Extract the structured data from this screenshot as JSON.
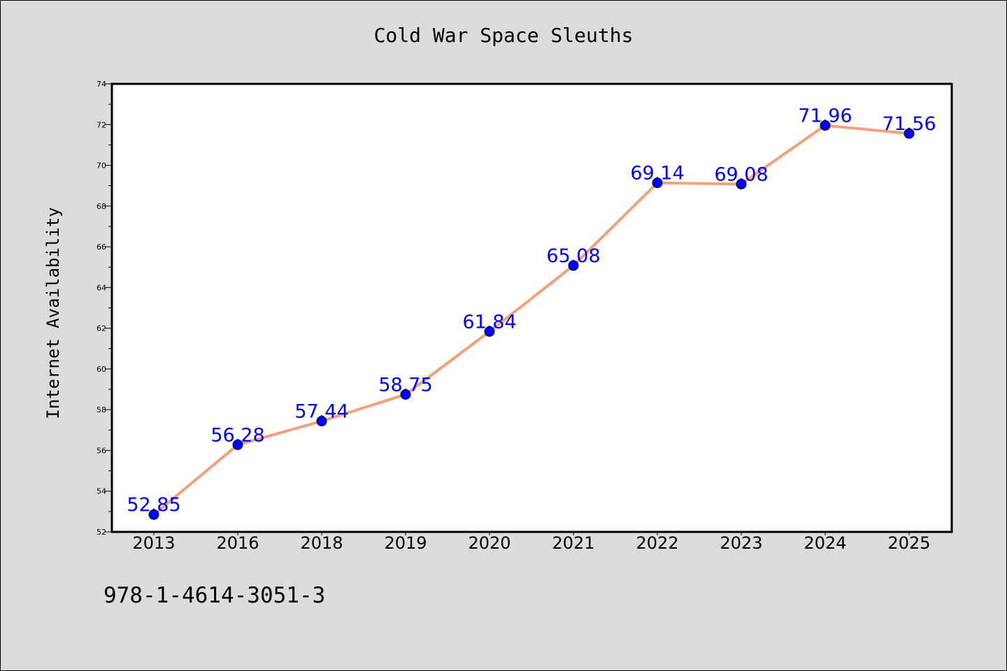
{
  "chart_data": {
    "type": "line",
    "title": "Cold War Space Sleuths",
    "xlabel": "",
    "ylabel": "Internet Availability",
    "categories": [
      "2013",
      "2016",
      "2018",
      "2019",
      "2020",
      "2021",
      "2022",
      "2023",
      "2024",
      "2025"
    ],
    "series": [
      {
        "values": [
          52.85,
          56.28,
          57.44,
          58.75,
          61.84,
          65.08,
          69.14,
          69.08,
          71.96,
          71.56
        ],
        "data_labels": [
          "52.85",
          "56.28",
          "57.44",
          "58.75",
          "61.84",
          "65.08",
          "69.14",
          "69.08",
          "71.96",
          "71.56"
        ]
      }
    ],
    "ylim": [
      52,
      74
    ],
    "yticks": [
      "52",
      "54",
      "56",
      "58",
      "60",
      "62",
      "64",
      "66",
      "68",
      "70",
      "72",
      "74"
    ],
    "grid": false,
    "legend": "none",
    "colors": {
      "line": "#f4a07a",
      "marker": "#0000ff",
      "data_label": "#0000ff",
      "plot_background": "#ffffff",
      "page_background": "#dcdcdc"
    }
  },
  "footer": {
    "isbn": "978-1-4614-3051-3"
  }
}
